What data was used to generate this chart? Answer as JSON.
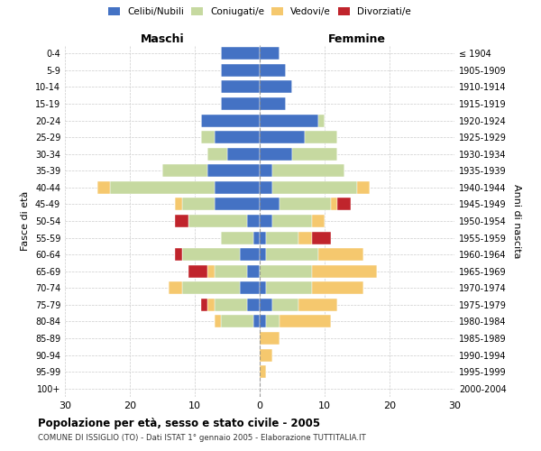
{
  "age_groups": [
    "0-4",
    "5-9",
    "10-14",
    "15-19",
    "20-24",
    "25-29",
    "30-34",
    "35-39",
    "40-44",
    "45-49",
    "50-54",
    "55-59",
    "60-64",
    "65-69",
    "70-74",
    "75-79",
    "80-84",
    "85-89",
    "90-94",
    "95-99",
    "100+"
  ],
  "birth_years": [
    "2000-2004",
    "1995-1999",
    "1990-1994",
    "1985-1989",
    "1980-1984",
    "1975-1979",
    "1970-1974",
    "1965-1969",
    "1960-1964",
    "1955-1959",
    "1950-1954",
    "1945-1949",
    "1940-1944",
    "1935-1939",
    "1930-1934",
    "1925-1929",
    "1920-1924",
    "1915-1919",
    "1910-1914",
    "1905-1909",
    "≤ 1904"
  ],
  "males": {
    "celibi": [
      6,
      6,
      6,
      6,
      9,
      7,
      5,
      8,
      7,
      7,
      2,
      1,
      3,
      2,
      3,
      2,
      1,
      0,
      0,
      0,
      0
    ],
    "coniugati": [
      0,
      0,
      0,
      0,
      0,
      2,
      3,
      7,
      16,
      5,
      9,
      5,
      9,
      5,
      9,
      5,
      5,
      0,
      0,
      0,
      0
    ],
    "vedovi": [
      0,
      0,
      0,
      0,
      0,
      0,
      0,
      0,
      2,
      1,
      0,
      0,
      0,
      1,
      2,
      1,
      1,
      0,
      0,
      0,
      0
    ],
    "divorziati": [
      0,
      0,
      0,
      0,
      0,
      0,
      0,
      0,
      0,
      0,
      2,
      0,
      1,
      3,
      0,
      1,
      0,
      0,
      0,
      0,
      0
    ]
  },
  "females": {
    "nubili": [
      3,
      4,
      5,
      4,
      9,
      7,
      5,
      2,
      2,
      3,
      2,
      1,
      1,
      0,
      1,
      2,
      1,
      0,
      0,
      0,
      0
    ],
    "coniugate": [
      0,
      0,
      0,
      0,
      1,
      5,
      7,
      11,
      13,
      8,
      6,
      5,
      8,
      8,
      7,
      4,
      2,
      0,
      0,
      0,
      0
    ],
    "vedove": [
      0,
      0,
      0,
      0,
      0,
      0,
      0,
      0,
      2,
      1,
      2,
      2,
      7,
      10,
      8,
      6,
      8,
      3,
      2,
      1,
      0
    ],
    "divorziate": [
      0,
      0,
      0,
      0,
      0,
      0,
      0,
      0,
      0,
      2,
      0,
      3,
      0,
      0,
      0,
      0,
      0,
      0,
      0,
      0,
      0
    ]
  },
  "colors": {
    "celibi_nubili": "#4472C4",
    "coniugati_e": "#C6D9A0",
    "vedovi_e": "#F5C86E",
    "divorziati_e": "#C0242C"
  },
  "xlim": 30,
  "title": "Popolazione per età, sesso e stato civile - 2005",
  "subtitle": "COMUNE DI ISSIGLIO (TO) - Dati ISTAT 1° gennaio 2005 - Elaborazione TUTTITALIA.IT",
  "xlabel_left": "Maschi",
  "xlabel_right": "Femmine",
  "ylabel_left": "Fasce di età",
  "ylabel_right": "Anni di nascita",
  "legend_labels": [
    "Celibi/Nubili",
    "Coniugati/e",
    "Vedovi/e",
    "Divorziati/e"
  ],
  "background_color": "#FFFFFF",
  "grid_color": "#CCCCCC"
}
